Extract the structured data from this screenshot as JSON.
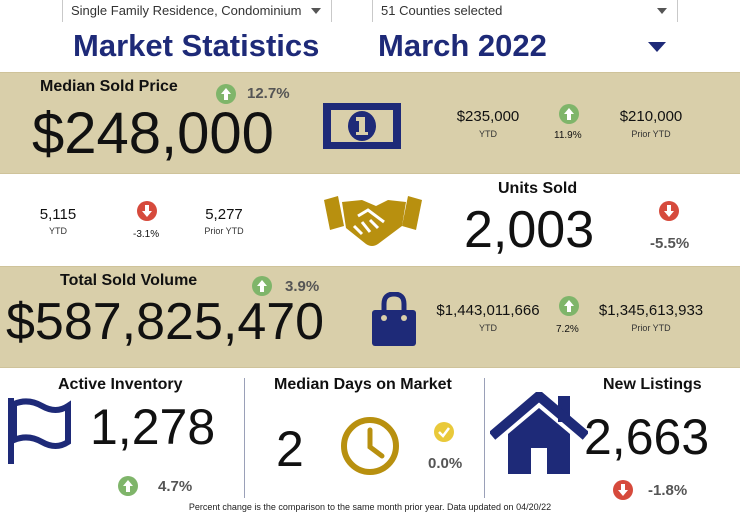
{
  "filters": {
    "property_type": "Single Family Residence, Condominium",
    "counties": "51 Counties selected"
  },
  "header": {
    "title": "Market Statistics",
    "period": "March 2022"
  },
  "median_sold_price": {
    "label": "Median Sold Price",
    "value": "$248,000",
    "change": "12.7%",
    "ytd_value": "$235,000",
    "ytd_label": "YTD",
    "ytd_change": "11.9%",
    "prior_value": "$210,000",
    "prior_label": "Prior YTD"
  },
  "units_sold": {
    "label": "Units Sold",
    "value": "2,003",
    "change": "-5.5%",
    "ytd_value": "5,115",
    "ytd_label": "YTD",
    "ytd_change": "-3.1%",
    "prior_value": "5,277",
    "prior_label": "Prior YTD"
  },
  "total_sold_volume": {
    "label": "Total Sold Volume",
    "value": "$587,825,470",
    "change": "3.9%",
    "ytd_value": "$1,443,011,666",
    "ytd_label": "YTD",
    "ytd_change": "7.2%",
    "prior_value": "$1,345,613,933",
    "prior_label": "Prior YTD"
  },
  "active_inventory": {
    "label": "Active Inventory",
    "value": "1,278",
    "change": "4.7%"
  },
  "median_days": {
    "label": "Median Days on Market",
    "value": "2",
    "change": "0.0%"
  },
  "new_listings": {
    "label": "New Listings",
    "value": "2,663",
    "change": "-1.8%"
  },
  "footer": "Percent change is the comparison to the same month prior year. Data updated on 04/20/22",
  "colors": {
    "navy": "#1e2a78",
    "tan": "#d9cfaa",
    "gold": "#b8900f",
    "up_green": "#7fb56a",
    "down_red": "#d64a3c"
  }
}
